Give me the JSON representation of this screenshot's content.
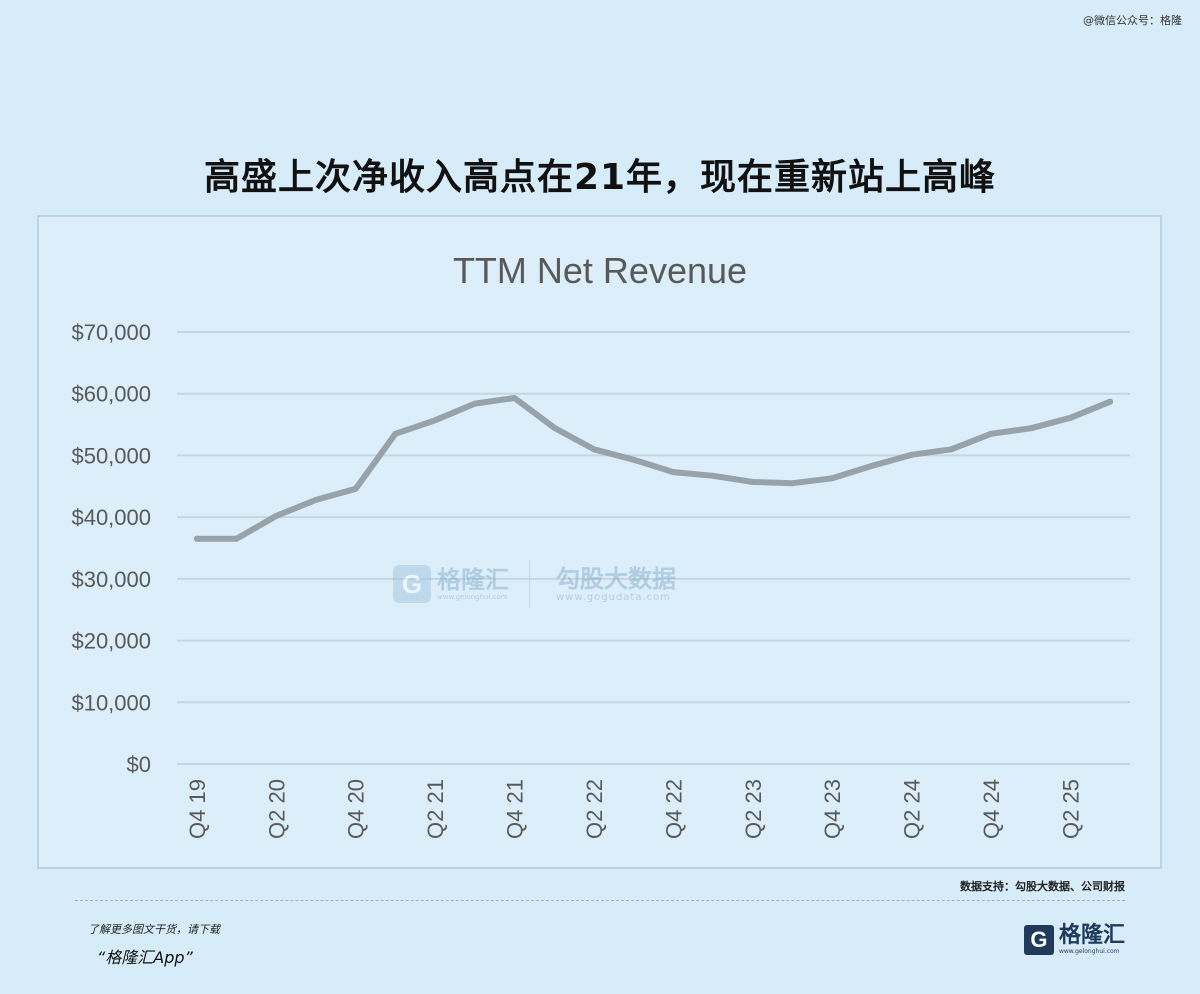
{
  "watermark_top": "@微信公众号：格隆",
  "headline": "高盛上次净收入高点在21年，现在重新站上高峰",
  "source": "数据支持：勾股大数据、公司财报",
  "promo": {
    "line": "了解更多图文干货，请下载",
    "app": "“格隆汇App”"
  },
  "brand": {
    "logo": "G",
    "name": "格隆汇",
    "url": "www.gelonghui.com"
  },
  "chart_watermark": {
    "logo": "G",
    "name": "格隆汇",
    "url": "www.gelonghui.com",
    "name2": "勾股大数据",
    "url2": "www.gogudata.com"
  },
  "colors": {
    "line": "#97a3a9",
    "grid": "#c4d6e0",
    "text": "#595959"
  },
  "chart_data": {
    "type": "line",
    "title": "TTM Net Revenue",
    "xlabel": "",
    "ylabel": "",
    "ylim": [
      0,
      70000
    ],
    "yticks": [
      0,
      10000,
      20000,
      30000,
      40000,
      50000,
      60000,
      70000
    ],
    "ytick_labels": [
      "$0",
      "$10,000",
      "$20,000",
      "$30,000",
      "$40,000",
      "$50,000",
      "$60,000",
      "$70,000"
    ],
    "categories": [
      "Q4 19",
      "Q1 20",
      "Q2 20",
      "Q3 20",
      "Q4 20",
      "Q1 21",
      "Q2 21",
      "Q3 21",
      "Q4 21",
      "Q1 22",
      "Q2 22",
      "Q3 22",
      "Q4 22",
      "Q1 23",
      "Q2 23",
      "Q3 23",
      "Q4 23",
      "Q1 24",
      "Q2 24",
      "Q3 24",
      "Q4 24",
      "Q1 25",
      "Q2 25",
      "Q3 25"
    ],
    "xtick_labels": [
      "Q4 19",
      "",
      "Q2 20",
      "",
      "Q4 20",
      "",
      "Q2 21",
      "",
      "Q4 21",
      "",
      "Q2 22",
      "",
      "Q4 22",
      "",
      "Q2 23",
      "",
      "Q4 23",
      "",
      "Q2 24",
      "",
      "Q4 24",
      "",
      "Q2 25",
      ""
    ],
    "series": [
      {
        "values": [
          36500,
          36500,
          40200,
          42800,
          44600,
          53500,
          55700,
          58400,
          59300,
          54500,
          51000,
          49300,
          47300,
          46700,
          45700,
          45500,
          46300,
          48300,
          50100,
          51000,
          53500,
          54400,
          56100,
          58700
        ]
      }
    ],
    "grid": true,
    "legend": false
  }
}
